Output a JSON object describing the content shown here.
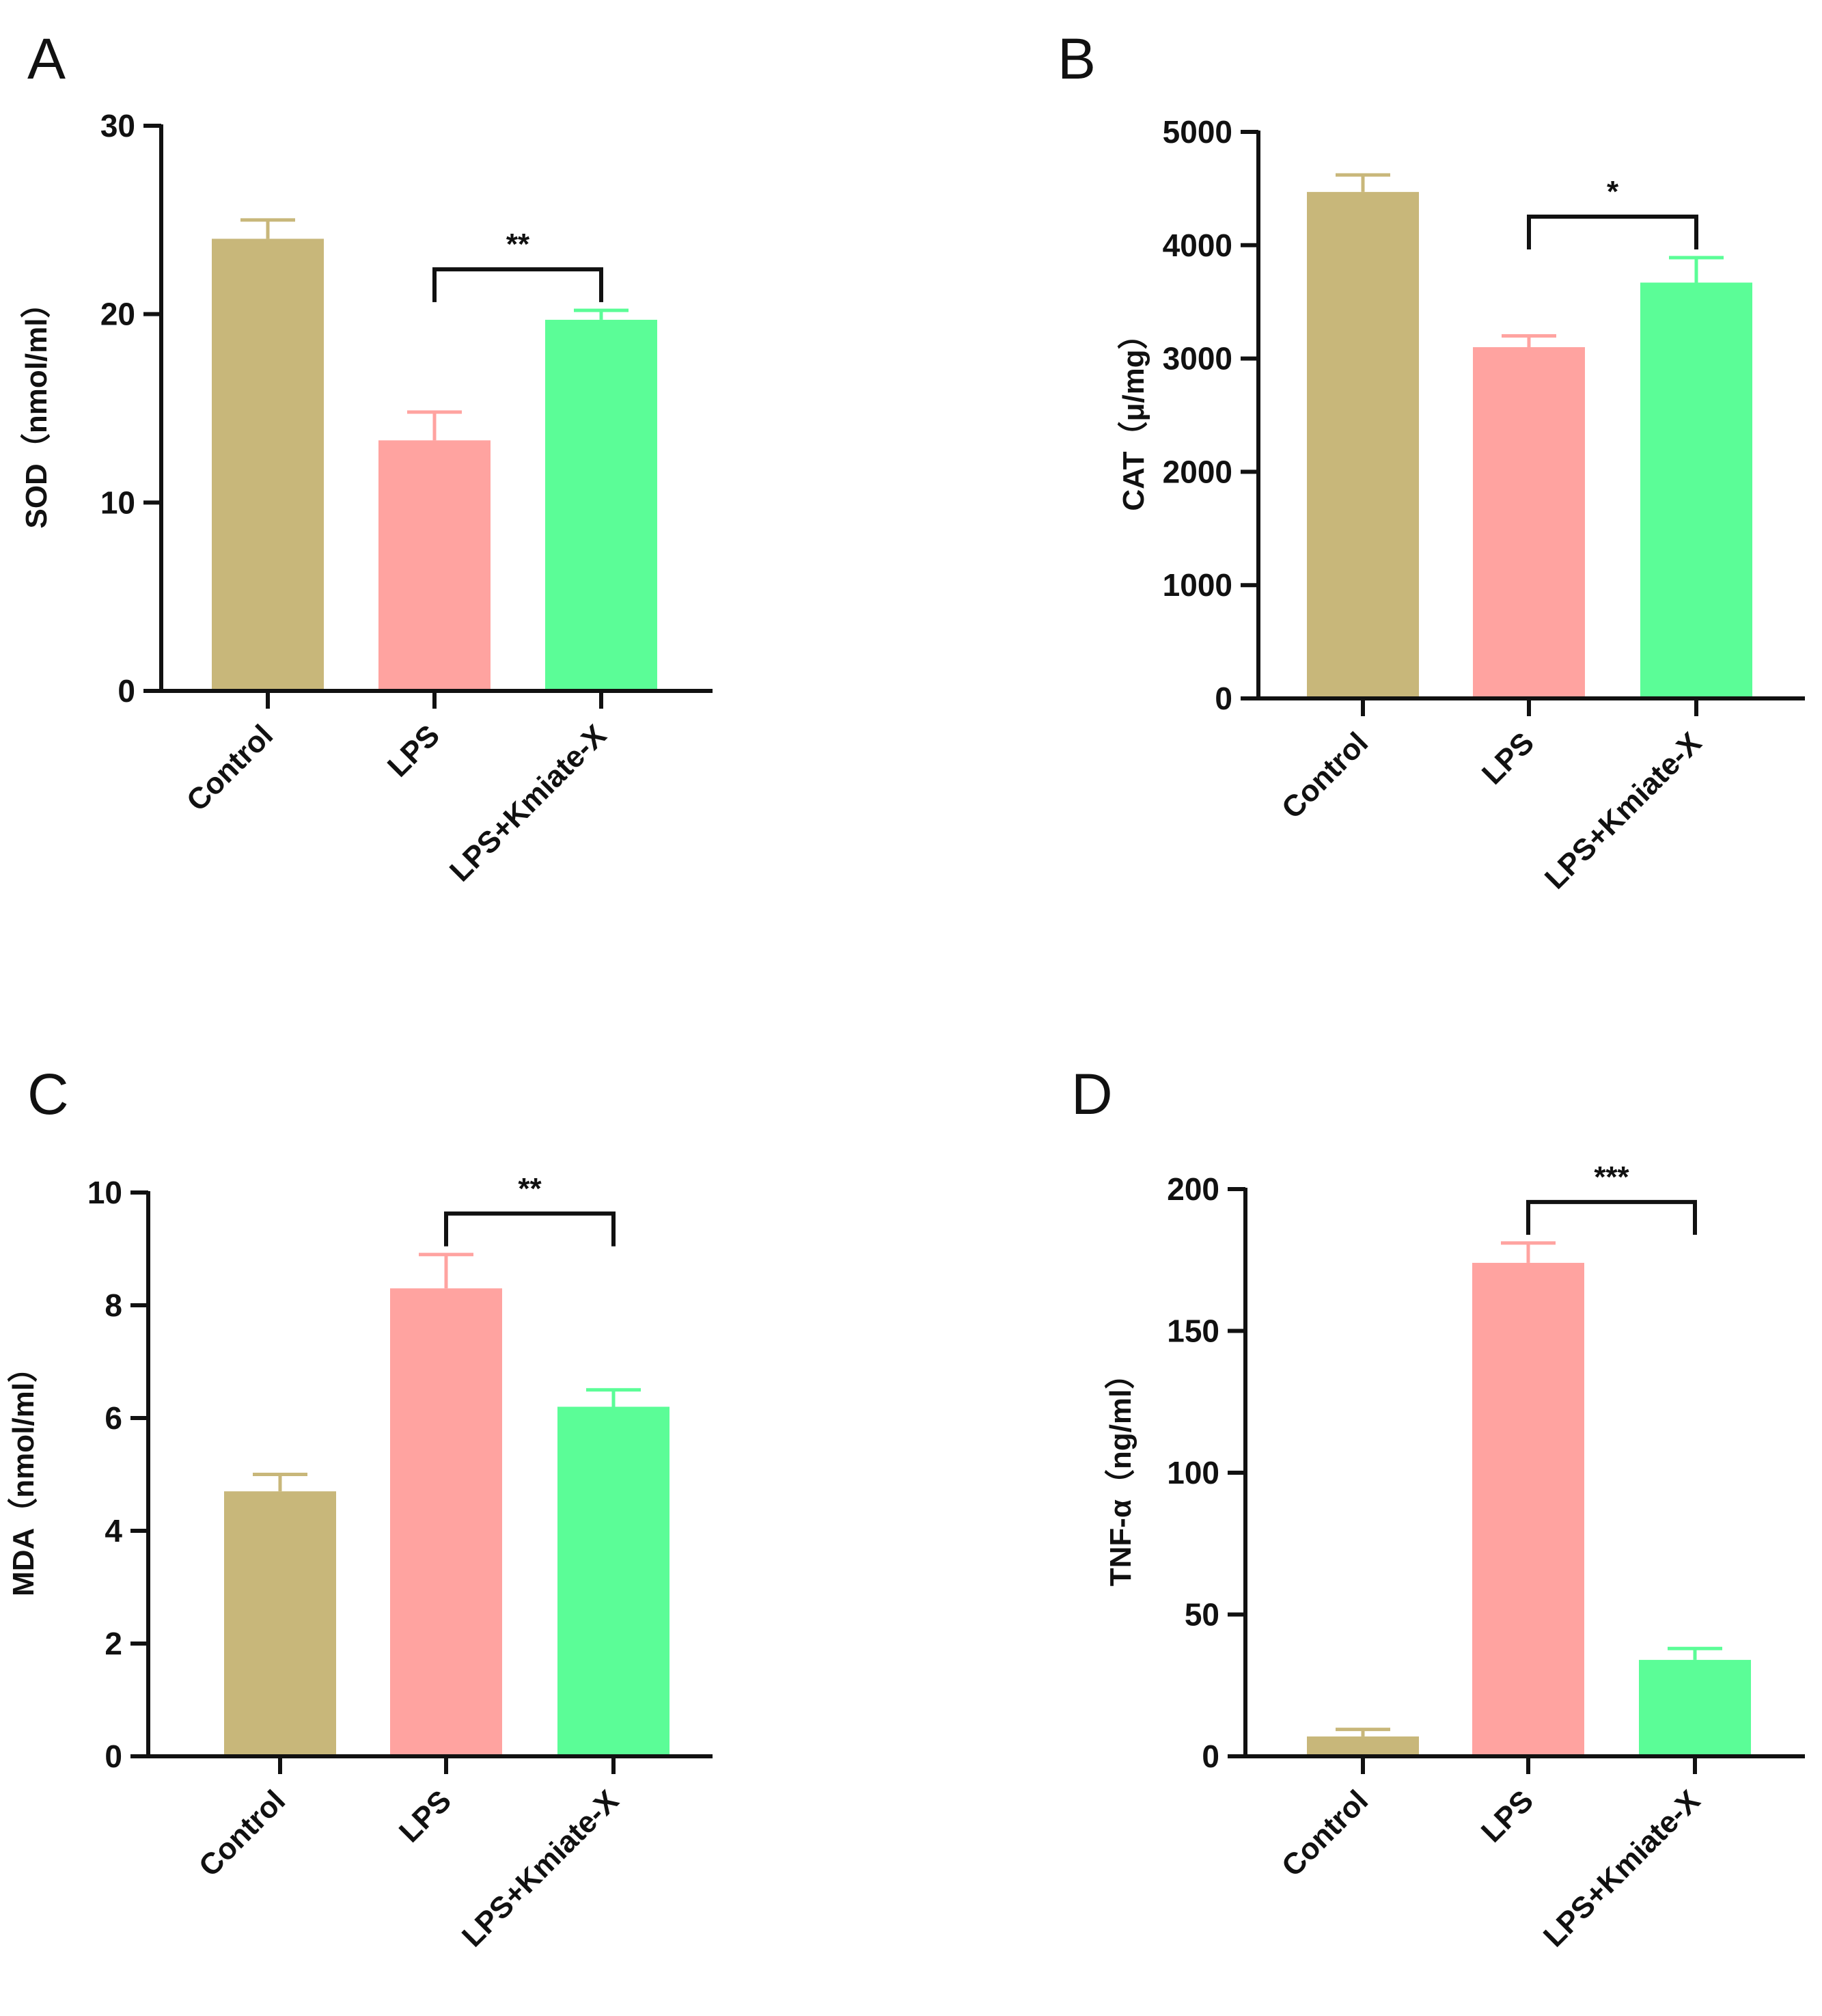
{
  "chart_data": [
    {
      "panel": "A",
      "type": "bar",
      "ylabel": "SOD（nmol/ml）",
      "ylim": [
        0,
        30
      ],
      "yticks": [
        0,
        10,
        20,
        30
      ],
      "categories": [
        "Control",
        "LPS",
        "LPS+Kmiate-X"
      ],
      "values": [
        24.0,
        13.3,
        19.7
      ],
      "errors": [
        1.0,
        1.5,
        0.5
      ],
      "significance": {
        "from": 1,
        "to": 2,
        "label": "**"
      }
    },
    {
      "panel": "B",
      "type": "bar",
      "ylabel": "CAT（μ/mg）",
      "ylim": [
        0,
        5000
      ],
      "yticks": [
        0,
        1000,
        2000,
        3000,
        4000,
        5000
      ],
      "categories": [
        "Control",
        "LPS",
        "LPS+Kmiate-X"
      ],
      "values": [
        4470,
        3100,
        3670
      ],
      "errors": [
        150,
        100,
        220
      ],
      "significance": {
        "from": 1,
        "to": 2,
        "label": "*"
      }
    },
    {
      "panel": "C",
      "type": "bar",
      "ylabel": "MDA（nmol/ml）",
      "ylim": [
        0,
        10
      ],
      "yticks": [
        0,
        2,
        4,
        6,
        8,
        10
      ],
      "categories": [
        "Control",
        "LPS",
        "LPS+Kmiate-X"
      ],
      "values": [
        4.7,
        8.3,
        6.2
      ],
      "errors": [
        0.3,
        0.6,
        0.3
      ],
      "significance": {
        "from": 1,
        "to": 2,
        "label": "**"
      }
    },
    {
      "panel": "D",
      "type": "bar",
      "ylabel": "TNF-α（ng/ml）",
      "ylim": [
        0,
        200
      ],
      "yticks": [
        0,
        50,
        100,
        150,
        200
      ],
      "categories": [
        "Control",
        "LPS",
        "LPS+Kmiate-X"
      ],
      "values": [
        7,
        174,
        34
      ],
      "errors": [
        2.5,
        7,
        4
      ],
      "significance": {
        "from": 1,
        "to": 2,
        "label": "***"
      }
    }
  ],
  "colors": {
    "control": "#c8b77a",
    "lps": "#ffa3a0",
    "lps_kmiate": "#5bfd97",
    "axis": "#111111"
  }
}
